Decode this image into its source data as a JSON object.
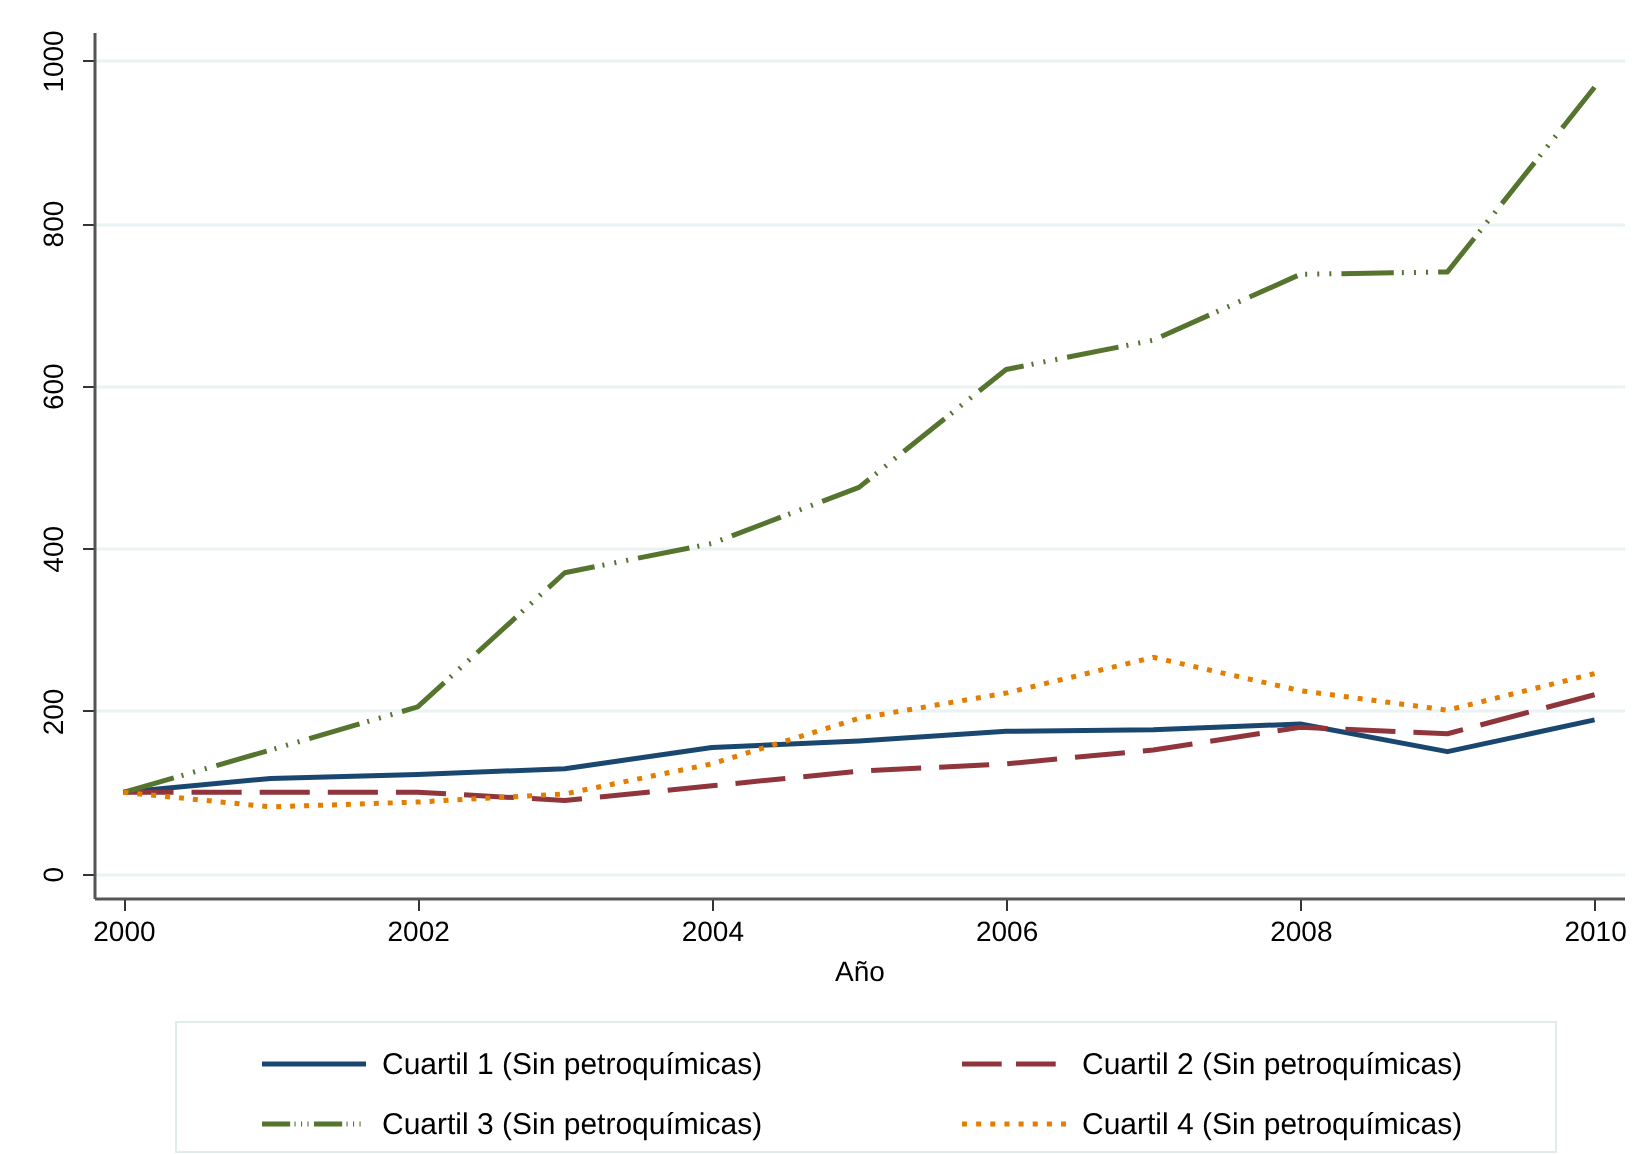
{
  "chart_data": {
    "type": "line",
    "xlabel": "Año",
    "x": [
      2000,
      2001,
      2002,
      2003,
      2004,
      2005,
      2006,
      2007,
      2008,
      2009,
      2010
    ],
    "xlim": [
      1999.8,
      2010.2
    ],
    "xticks": [
      2000,
      2002,
      2004,
      2006,
      2008,
      2010
    ],
    "ylim": [
      -30,
      1035
    ],
    "yticks": [
      0,
      200,
      400,
      600,
      800,
      1000
    ],
    "grid": "y",
    "legend": "bottom",
    "series": [
      {
        "name": "Cuartil 1 (Sin petroquímicas)",
        "color": "#1a476f",
        "line_style": "solid",
        "values": [
          100,
          117,
          122,
          129,
          155,
          163,
          175,
          177,
          184,
          150,
          189
        ]
      },
      {
        "name": "Cuartil 2 (Sin petroquímicas)",
        "color": "#90353b",
        "line_style": "dashed",
        "values": [
          100,
          100,
          100,
          90,
          108,
          126,
          135,
          152,
          180,
          172,
          220
        ]
      },
      {
        "name": "Cuartil 3 (Sin petroquímicas)",
        "color": "#55752f",
        "line_style": "dashdot",
        "values": [
          100,
          152,
          205,
          370,
          406,
          475,
          620,
          656,
          737,
          740,
          967
        ]
      },
      {
        "name": "Cuartil 4 (Sin petroquímicas)",
        "color": "#e37e00",
        "line_style": "dotted",
        "values": [
          100,
          82,
          88,
          98,
          135,
          191,
          222,
          266,
          225,
          201,
          246
        ]
      }
    ]
  }
}
